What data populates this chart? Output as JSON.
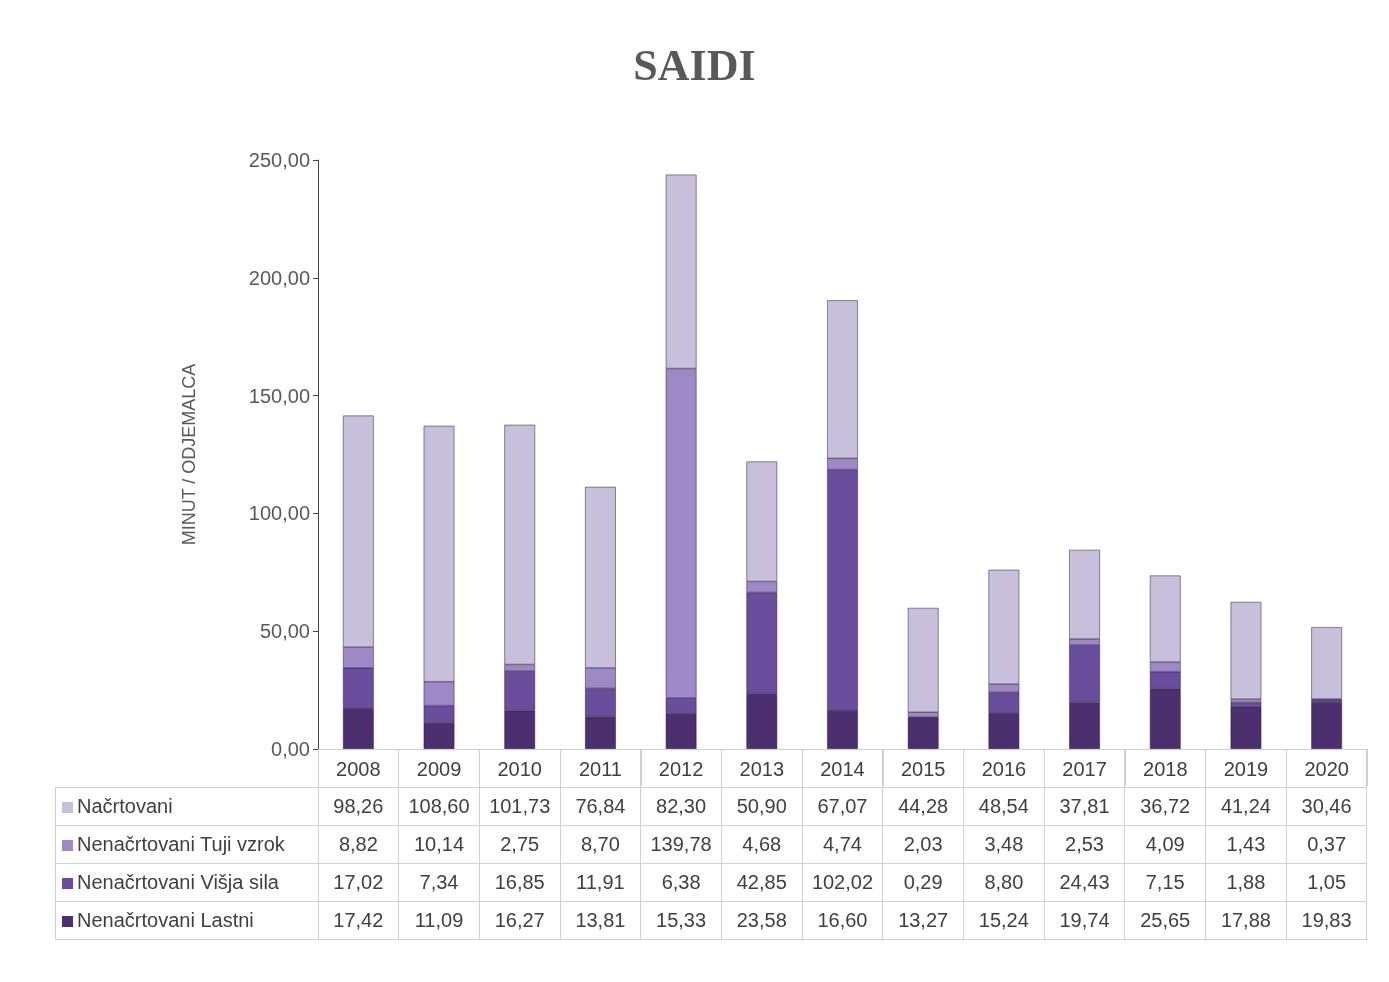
{
  "chart_data": {
    "type": "bar",
    "title": "SAIDI",
    "ylabel": "MINUT / ODJEMALCA",
    "stacked": true,
    "legend": "bottom",
    "grid": false,
    "categories": [
      "2008",
      "2009",
      "2010",
      "2011",
      "2012",
      "2013",
      "2014",
      "2015",
      "2016",
      "2017",
      "2018",
      "2019",
      "2020"
    ],
    "ylim": [
      0,
      250
    ],
    "yticks": [
      {
        "value": 0,
        "label": "0,00"
      },
      {
        "value": 50,
        "label": "50,00"
      },
      {
        "value": 100,
        "label": "100,00"
      },
      {
        "value": 150,
        "label": "150,00"
      },
      {
        "value": 200,
        "label": "200,00"
      },
      {
        "value": 250,
        "label": "250,00"
      }
    ],
    "series": [
      {
        "name": "Nenačrtovani Lastni",
        "color": "#4b2f6e",
        "values": [
          17.42,
          11.09,
          16.27,
          13.81,
          15.33,
          23.58,
          16.6,
          13.27,
          15.24,
          19.74,
          25.65,
          17.88,
          19.83
        ],
        "value_labels": [
          "17,42",
          "11,09",
          "16,27",
          "13,81",
          "15,33",
          "23,58",
          "16,60",
          "13,27",
          "15,24",
          "19,74",
          "25,65",
          "17,88",
          "19,83"
        ]
      },
      {
        "name": "Nenačrtovani Višja sila",
        "color": "#6b4d9e",
        "values": [
          17.02,
          7.34,
          16.85,
          11.91,
          6.38,
          42.85,
          102.02,
          0.29,
          8.8,
          24.43,
          7.15,
          1.88,
          1.05
        ],
        "value_labels": [
          "17,02",
          "7,34",
          "16,85",
          "11,91",
          "6,38",
          "42,85",
          "102,02",
          "0,29",
          "8,80",
          "24,43",
          "7,15",
          "1,88",
          "1,05"
        ]
      },
      {
        "name": "Nenačrtovani Tuji vzrok",
        "color": "#9d89c6",
        "values": [
          8.82,
          10.14,
          2.75,
          8.7,
          139.78,
          4.68,
          4.74,
          2.03,
          3.48,
          2.53,
          4.09,
          1.43,
          0.37
        ],
        "value_labels": [
          "8,82",
          "10,14",
          "2,75",
          "8,70",
          "139,78",
          "4,68",
          "4,74",
          "2,03",
          "3,48",
          "2,53",
          "4,09",
          "1,43",
          "0,37"
        ]
      },
      {
        "name": "Načrtovani",
        "color": "#c8bfda",
        "values": [
          98.26,
          108.6,
          101.73,
          76.84,
          82.3,
          50.9,
          67.07,
          44.28,
          48.54,
          37.81,
          36.72,
          41.24,
          30.46
        ],
        "value_labels": [
          "98,26",
          "108,60",
          "101,73",
          "76,84",
          "82,30",
          "50,90",
          "67,07",
          "44,28",
          "48,54",
          "37,81",
          "36,72",
          "41,24",
          "30,46"
        ]
      }
    ]
  }
}
